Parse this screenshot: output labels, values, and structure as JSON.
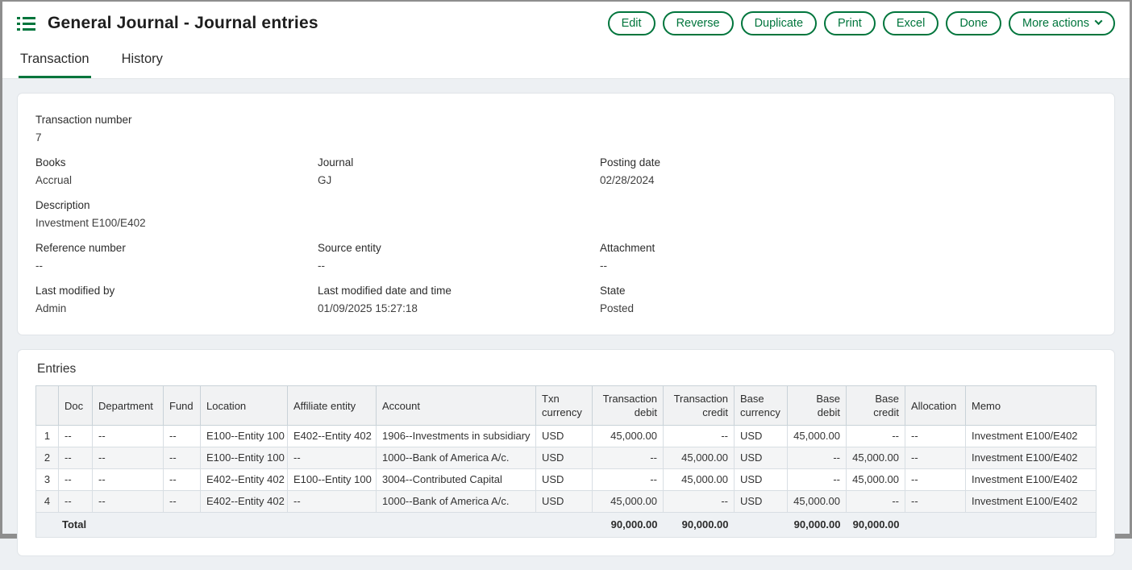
{
  "app": {
    "title": "General Journal - Journal entries",
    "accent_green": "#00753c"
  },
  "toolbar": {
    "buttons": [
      "Edit",
      "Reverse",
      "Duplicate",
      "Print",
      "Excel",
      "Done"
    ],
    "more_actions_label": "More actions"
  },
  "tabs": {
    "transaction": "Transaction",
    "history": "History"
  },
  "details": {
    "transaction_number": {
      "label": "Transaction number",
      "value": "7"
    },
    "books": {
      "label": "Books",
      "value": "Accrual"
    },
    "journal": {
      "label": "Journal",
      "value": "GJ"
    },
    "posting_date": {
      "label": "Posting date",
      "value": "02/28/2024"
    },
    "description": {
      "label": "Description",
      "value": "Investment E100/E402"
    },
    "reference_number": {
      "label": "Reference number",
      "value": "--"
    },
    "source_entity": {
      "label": "Source entity",
      "value": "--"
    },
    "attachment": {
      "label": "Attachment",
      "value": "--"
    },
    "last_modified_by": {
      "label": "Last modified by",
      "value": "Admin"
    },
    "last_modified_datetime": {
      "label": "Last modified date and time",
      "value": "01/09/2025 15:27:18"
    },
    "state": {
      "label": "State",
      "value": "Posted"
    }
  },
  "entries": {
    "heading": "Entries",
    "columns": [
      "",
      "Doc",
      "Department",
      "Fund",
      "Location",
      "Affiliate entity",
      "Account",
      "Txn currency",
      "Transaction debit",
      "Transaction credit",
      "Base currency",
      "Base debit",
      "Base credit",
      "Allocation",
      "Memo"
    ],
    "rows": [
      {
        "num": "1",
        "doc": "--",
        "department": "--",
        "fund": "--",
        "location": "E100--Entity 100",
        "affiliate_entity": "E402--Entity 402",
        "account": "1906--Investments in subsidiary",
        "txn_currency": "USD",
        "transaction_debit": "45,000.00",
        "transaction_credit": "--",
        "base_currency": "USD",
        "base_debit": "45,000.00",
        "base_credit": "--",
        "allocation": "--",
        "memo": "Investment E100/E402"
      },
      {
        "num": "2",
        "doc": "--",
        "department": "--",
        "fund": "--",
        "location": "E100--Entity 100",
        "affiliate_entity": "--",
        "account": "1000--Bank of America A/c.",
        "txn_currency": "USD",
        "transaction_debit": "--",
        "transaction_credit": "45,000.00",
        "base_currency": "USD",
        "base_debit": "--",
        "base_credit": "45,000.00",
        "allocation": "--",
        "memo": "Investment E100/E402"
      },
      {
        "num": "3",
        "doc": "--",
        "department": "--",
        "fund": "--",
        "location": "E402--Entity 402",
        "affiliate_entity": "E100--Entity 100",
        "account": "3004--Contributed Capital",
        "txn_currency": "USD",
        "transaction_debit": "--",
        "transaction_credit": "45,000.00",
        "base_currency": "USD",
        "base_debit": "--",
        "base_credit": "45,000.00",
        "allocation": "--",
        "memo": "Investment E100/E402"
      },
      {
        "num": "4",
        "doc": "--",
        "department": "--",
        "fund": "--",
        "location": "E402--Entity 402",
        "affiliate_entity": "--",
        "account": "1000--Bank of America A/c.",
        "txn_currency": "USD",
        "transaction_debit": "45,000.00",
        "transaction_credit": "--",
        "base_currency": "USD",
        "base_debit": "45,000.00",
        "base_credit": "--",
        "allocation": "--",
        "memo": "Investment E100/E402"
      }
    ],
    "total": {
      "label": "Total",
      "transaction_debit": "90,000.00",
      "transaction_credit": "90,000.00",
      "base_debit": "90,000.00",
      "base_credit": "90,000.00"
    }
  }
}
